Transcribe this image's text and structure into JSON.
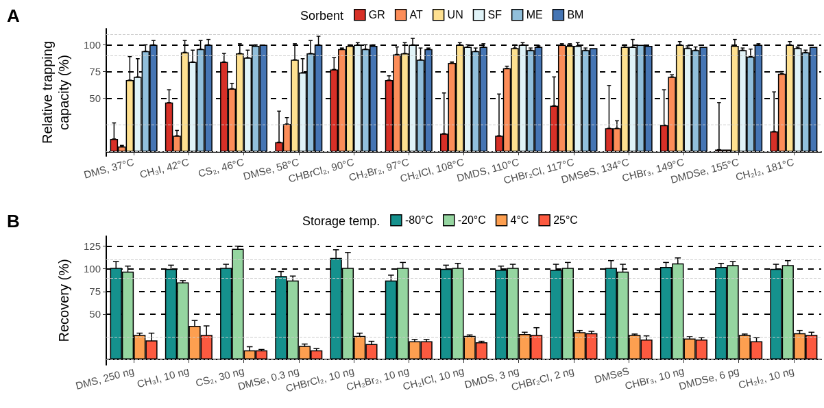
{
  "chart_data": [
    {
      "type": "bar",
      "annotations": [
        "A"
      ],
      "ylabel": "Relative trapping capacity (%)",
      "legend_title": "Sorbent",
      "legend": "top",
      "grid": "y",
      "categories": [
        "DMS, 37°C",
        "CH₃I, 42°C",
        "CS₂, 46°C",
        "DMSe, 58°C",
        "CHBrCl₂, 90°C",
        "CH₂Br₂, 97°C",
        "CH₂ICl, 108°C",
        "DMDS, 110°C",
        "CHBr₂Cl, 117°C",
        "DMSeS, 134°C",
        "CHBr₃, 149°C",
        "DMDSe, 155°C",
        "CH₂I₂, 181°C"
      ],
      "ylim": [
        -4,
        115
      ],
      "yticks": [
        50,
        75,
        100
      ],
      "ref_lines": [
        {
          "axis": "y",
          "value": 0,
          "color": "#cccccc",
          "line_style": "dashed"
        },
        {
          "axis": "y",
          "value": 25,
          "color": "#cccccc",
          "line_style": "dashed"
        },
        {
          "axis": "y",
          "value": 90,
          "color": "#cccccc",
          "line_style": "dashed"
        },
        {
          "axis": "y",
          "value": 110,
          "color": "#cccccc",
          "line_style": "dashed"
        }
      ],
      "series": [
        {
          "name": "GR",
          "color": "#d73027",
          "values": [
            12,
            46,
            84,
            9,
            77,
            67,
            17,
            15,
            43,
            22,
            25,
            2,
            19
          ],
          "errors": [
            [
              12,
              27
            ],
            [
              46,
              58
            ],
            [
              84,
              92
            ],
            [
              9,
              38
            ],
            [
              77,
              88
            ],
            [
              67,
              71
            ],
            [
              17,
              55
            ],
            [
              15,
              54
            ],
            [
              43,
              70
            ],
            [
              22,
              62
            ],
            [
              25,
              58
            ],
            [
              2,
              46
            ],
            [
              19,
              56
            ]
          ]
        },
        {
          "name": "AT",
          "color": "#fc8d59",
          "values": [
            5,
            15,
            59,
            26,
            96,
            91,
            83,
            78,
            100,
            22,
            70,
            2,
            73
          ],
          "errors": [
            [
              5,
              6
            ],
            [
              15,
              20
            ],
            [
              59,
              64
            ],
            [
              26,
              32
            ],
            [
              96,
              97
            ],
            [
              91,
              98
            ],
            [
              83,
              84
            ],
            [
              78,
              80
            ],
            [
              100,
              101
            ],
            [
              22,
              29
            ],
            [
              70,
              72
            ],
            null,
            [
              73,
              75
            ]
          ]
        },
        {
          "name": "UN",
          "color": "#fee090",
          "values": [
            67,
            93,
            92,
            86,
            99,
            92,
            100,
            97,
            99,
            98,
            100,
            99,
            100
          ],
          "errors": [
            [
              67,
              89
            ],
            [
              93,
              104
            ],
            [
              92,
              101
            ],
            [
              86,
              101
            ],
            [
              99,
              100
            ],
            [
              92,
              102
            ],
            [
              100,
              102
            ],
            [
              97,
              100
            ],
            [
              99,
              101
            ],
            [
              98,
              100
            ],
            [
              100,
              103
            ],
            [
              99,
              105
            ],
            [
              100,
              103
            ]
          ]
        },
        {
          "name": "SF",
          "color": "#e0f3f8",
          "values": [
            70,
            84,
            88,
            74,
            100,
            100,
            98,
            100,
            99,
            98,
            97,
            95,
            97
          ],
          "errors": [
            [
              70,
              87
            ],
            [
              84,
              95
            ],
            [
              88,
              95
            ],
            [
              74,
              87
            ],
            [
              100,
              102
            ],
            [
              100,
              106
            ],
            [
              98,
              100
            ],
            [
              100,
              102
            ],
            [
              99,
              102
            ],
            [
              98,
              105
            ],
            [
              97,
              99
            ],
            [
              95,
              97
            ],
            [
              97,
              98
            ]
          ]
        },
        {
          "name": "ME",
          "color": "#91bfdb",
          "values": [
            94,
            96,
            99,
            92,
            96,
            86,
            94,
            95,
            95,
            100,
            95,
            89,
            93
          ],
          "errors": [
            [
              94,
              100
            ],
            [
              96,
              104
            ],
            [
              99,
              100
            ],
            [
              92,
              104
            ],
            [
              96,
              100
            ],
            [
              86,
              97
            ],
            [
              94,
              97
            ],
            [
              95,
              97
            ],
            [
              95,
              97
            ],
            null,
            [
              95,
              98
            ],
            [
              89,
              96
            ],
            [
              93,
              95
            ]
          ]
        },
        {
          "name": "BM",
          "color": "#4575b4",
          "values": [
            100,
            100,
            100,
            100,
            99,
            96,
            98,
            98,
            97,
            99,
            98,
            100,
            98
          ],
          "errors": [
            [
              100,
              104
            ],
            [
              100,
              105
            ],
            null,
            [
              100,
              108
            ],
            [
              99,
              100
            ],
            [
              96,
              97
            ],
            [
              98,
              101
            ],
            [
              98,
              99
            ],
            null,
            null,
            null,
            [
              100,
              101
            ],
            null
          ]
        }
      ]
    },
    {
      "type": "bar",
      "annotations": [
        "B"
      ],
      "ylabel": "Recovery (%)",
      "legend_title": "Storage temp.",
      "legend": "top",
      "grid": "y",
      "categories": [
        "DMS, 250 ng",
        "CH₃I, 10 ng",
        "CS₂, 30 ng",
        "DMSe, 0.3 ng",
        "CHBrCl₂, 10 ng",
        "CH₂Br₂, 10 ng",
        "CH₂ICl, 10 ng",
        "DMDS, 3 ng",
        "CHBr₂Cl, 2 ng",
        "DMSeS",
        "CHBr₃, 10 ng",
        "DMDSe, 6 pg",
        "CH₂I₂, 10 ng"
      ],
      "ylim": [
        -6,
        136
      ],
      "yticks": [
        50,
        75,
        100,
        125
      ],
      "ref_lines": [
        {
          "axis": "y",
          "value": 0,
          "color": "#cccccc",
          "line_style": "dashed"
        },
        {
          "axis": "y",
          "value": 25,
          "color": "#cccccc",
          "line_style": "dashed"
        },
        {
          "axis": "y",
          "value": 90,
          "color": "#cccccc",
          "line_style": "dashed"
        },
        {
          "axis": "y",
          "value": 110,
          "color": "#cccccc",
          "line_style": "dashed"
        }
      ],
      "series": [
        {
          "name": "-80°C",
          "color": "#15918d",
          "values": [
            101,
            100,
            101,
            92,
            112,
            87,
            100,
            99,
            99,
            101,
            102,
            102,
            100
          ],
          "errors": [
            7,
            4,
            4,
            5,
            9,
            6,
            4,
            4,
            6,
            8,
            5,
            4,
            5
          ]
        },
        {
          "name": "-20°C",
          "color": "#95d5a0",
          "values": [
            97,
            85,
            122,
            87,
            101,
            101,
            101,
            101,
            101,
            97,
            106,
            104,
            104
          ],
          "errors": [
            6,
            2,
            3,
            5,
            17,
            6,
            5,
            4,
            6,
            8,
            6,
            4,
            5
          ]
        },
        {
          "name": "4°C",
          "color": "#fd9f50",
          "values": [
            27,
            37,
            10,
            15,
            26,
            20,
            26,
            28,
            30,
            27,
            23,
            27,
            29
          ],
          "errors": [
            2,
            6,
            4,
            2,
            3,
            2,
            1,
            2,
            2,
            1,
            2,
            1,
            3
          ]
        },
        {
          "name": "25°C",
          "color": "#fc5a40",
          "values": [
            21,
            27,
            10,
            10,
            17,
            20,
            19,
            27,
            29,
            22,
            22,
            20,
            27
          ],
          "errors": [
            8,
            10,
            1,
            2,
            3,
            2,
            1,
            8,
            2,
            4,
            2,
            4,
            3
          ]
        }
      ]
    }
  ]
}
